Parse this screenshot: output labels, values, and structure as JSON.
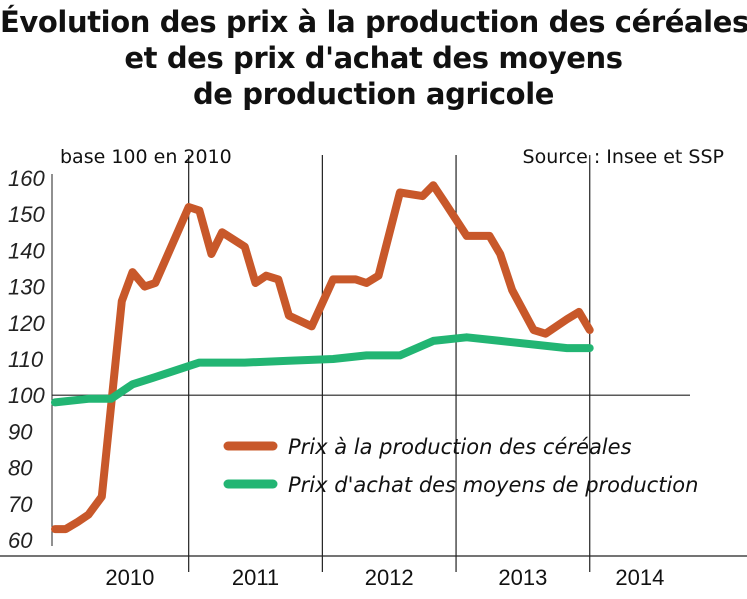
{
  "title_lines": [
    "Évolution des prix à la production des céréales",
    "et des prix d'achat des moyens",
    "de production agricole"
  ],
  "base_note": "base 100 en 2010",
  "source": "Source : Insee et SSP",
  "colors": {
    "cereals": "#c8582a",
    "inputs": "#22b573",
    "grid": "#222222"
  },
  "chart_data": {
    "type": "line",
    "title": "Évolution des prix à la production des céréales et des prix d'achat des moyens de production agricole",
    "ylabel": "base 100 en 2010",
    "ylim": [
      60,
      160
    ],
    "yticks": [
      60,
      70,
      80,
      90,
      100,
      110,
      120,
      130,
      140,
      150,
      160
    ],
    "xlim": [
      2009.5,
      2014.25
    ],
    "year_labels": [
      "2010",
      "2011",
      "2012",
      "2013",
      "2014"
    ],
    "legend_position": "bottom-right",
    "grid": "vertical lines at year boundaries, horizontal line at 100",
    "series": [
      {
        "name": "Prix à la production des céréales",
        "color": "#c8582a",
        "points": [
          [
            2009.5,
            63
          ],
          [
            2009.58,
            63
          ],
          [
            2009.67,
            65
          ],
          [
            2009.75,
            67
          ],
          [
            2009.85,
            72
          ],
          [
            2010.0,
            126
          ],
          [
            2010.08,
            134
          ],
          [
            2010.17,
            130
          ],
          [
            2010.25,
            131
          ],
          [
            2010.5,
            152
          ],
          [
            2010.58,
            151
          ],
          [
            2010.67,
            139
          ],
          [
            2010.75,
            145
          ],
          [
            2010.92,
            141
          ],
          [
            2011.0,
            131
          ],
          [
            2011.08,
            133
          ],
          [
            2011.17,
            132
          ],
          [
            2011.25,
            122
          ],
          [
            2011.42,
            119
          ],
          [
            2011.58,
            132
          ],
          [
            2011.75,
            132
          ],
          [
            2011.83,
            131
          ],
          [
            2011.92,
            133
          ],
          [
            2012.08,
            156
          ],
          [
            2012.25,
            155
          ],
          [
            2012.33,
            158
          ],
          [
            2012.42,
            153
          ],
          [
            2012.58,
            144
          ],
          [
            2012.75,
            144
          ],
          [
            2012.83,
            139
          ],
          [
            2012.92,
            129
          ],
          [
            2013.08,
            118
          ],
          [
            2013.17,
            117
          ],
          [
            2013.33,
            121
          ],
          [
            2013.42,
            123
          ],
          [
            2013.5,
            118
          ]
        ]
      },
      {
        "name": "Prix d'achat des moyens de production",
        "color": "#22b573",
        "points": [
          [
            2009.5,
            98
          ],
          [
            2009.75,
            99
          ],
          [
            2009.92,
            99
          ],
          [
            2010.08,
            103
          ],
          [
            2010.25,
            105
          ],
          [
            2010.58,
            109
          ],
          [
            2010.92,
            109
          ],
          [
            2011.25,
            109.5
          ],
          [
            2011.58,
            110
          ],
          [
            2011.83,
            111
          ],
          [
            2012.08,
            111
          ],
          [
            2012.33,
            115
          ],
          [
            2012.58,
            116
          ],
          [
            2012.83,
            115
          ],
          [
            2013.08,
            114
          ],
          [
            2013.33,
            113
          ],
          [
            2013.5,
            113
          ]
        ]
      }
    ]
  }
}
